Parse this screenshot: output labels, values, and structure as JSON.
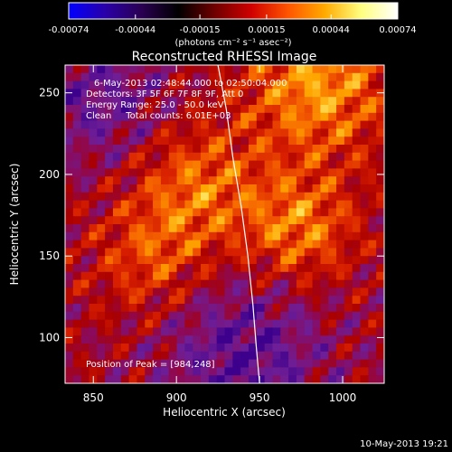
{
  "colorbar": {
    "stops": [
      "#0000ff",
      "#2a00a8",
      "#2a0050",
      "#000000",
      "#700000",
      "#d00000",
      "#ff5500",
      "#ffaa00",
      "#ffff80",
      "#ffffff"
    ],
    "ticks": [
      "-0.00074",
      "-0.00044",
      "-0.00015",
      "0.00015",
      "0.00044",
      "0.00074"
    ],
    "tick_values": [
      -0.00074,
      -0.00044,
      -0.00015,
      0.00015,
      0.00044,
      0.00074
    ],
    "range": [
      -0.00074,
      0.00074
    ]
  },
  "chart_data": {
    "type": "heatmap",
    "title": "Reconstructed RHESSI Image",
    "unit_label": "(photons cm⁻² s⁻¹ asec⁻²)",
    "xlabel": "Heliocentric X (arcsec)",
    "ylabel": "Heliocentric Y (arcsec)",
    "xlim": [
      833,
      1025
    ],
    "ylim": [
      72,
      267
    ],
    "x_ticks": [
      850,
      900,
      950,
      1000
    ],
    "y_ticks": [
      100,
      150,
      200,
      250
    ],
    "annotations": [
      "6-May-2013 02:48:44.000 to 02:50:04.000",
      "Detectors: 3F 5F 6F 7F 8F 9F, Att 0",
      "Energy Range: 25.0 - 50.0 keV",
      "Clean     Total counts: 6.01E+03"
    ],
    "peak_label": "Position of Peak = [984,248]",
    "peak": [
      984,
      248
    ],
    "limb_curve": [
      [
        925,
        267
      ],
      [
        930,
        240
      ],
      [
        934,
        210
      ],
      [
        939,
        180
      ],
      [
        943,
        150
      ],
      [
        946,
        120
      ],
      [
        948,
        95
      ],
      [
        950,
        72
      ]
    ]
  },
  "footer": {
    "date": "10-May-2013 19:21"
  }
}
